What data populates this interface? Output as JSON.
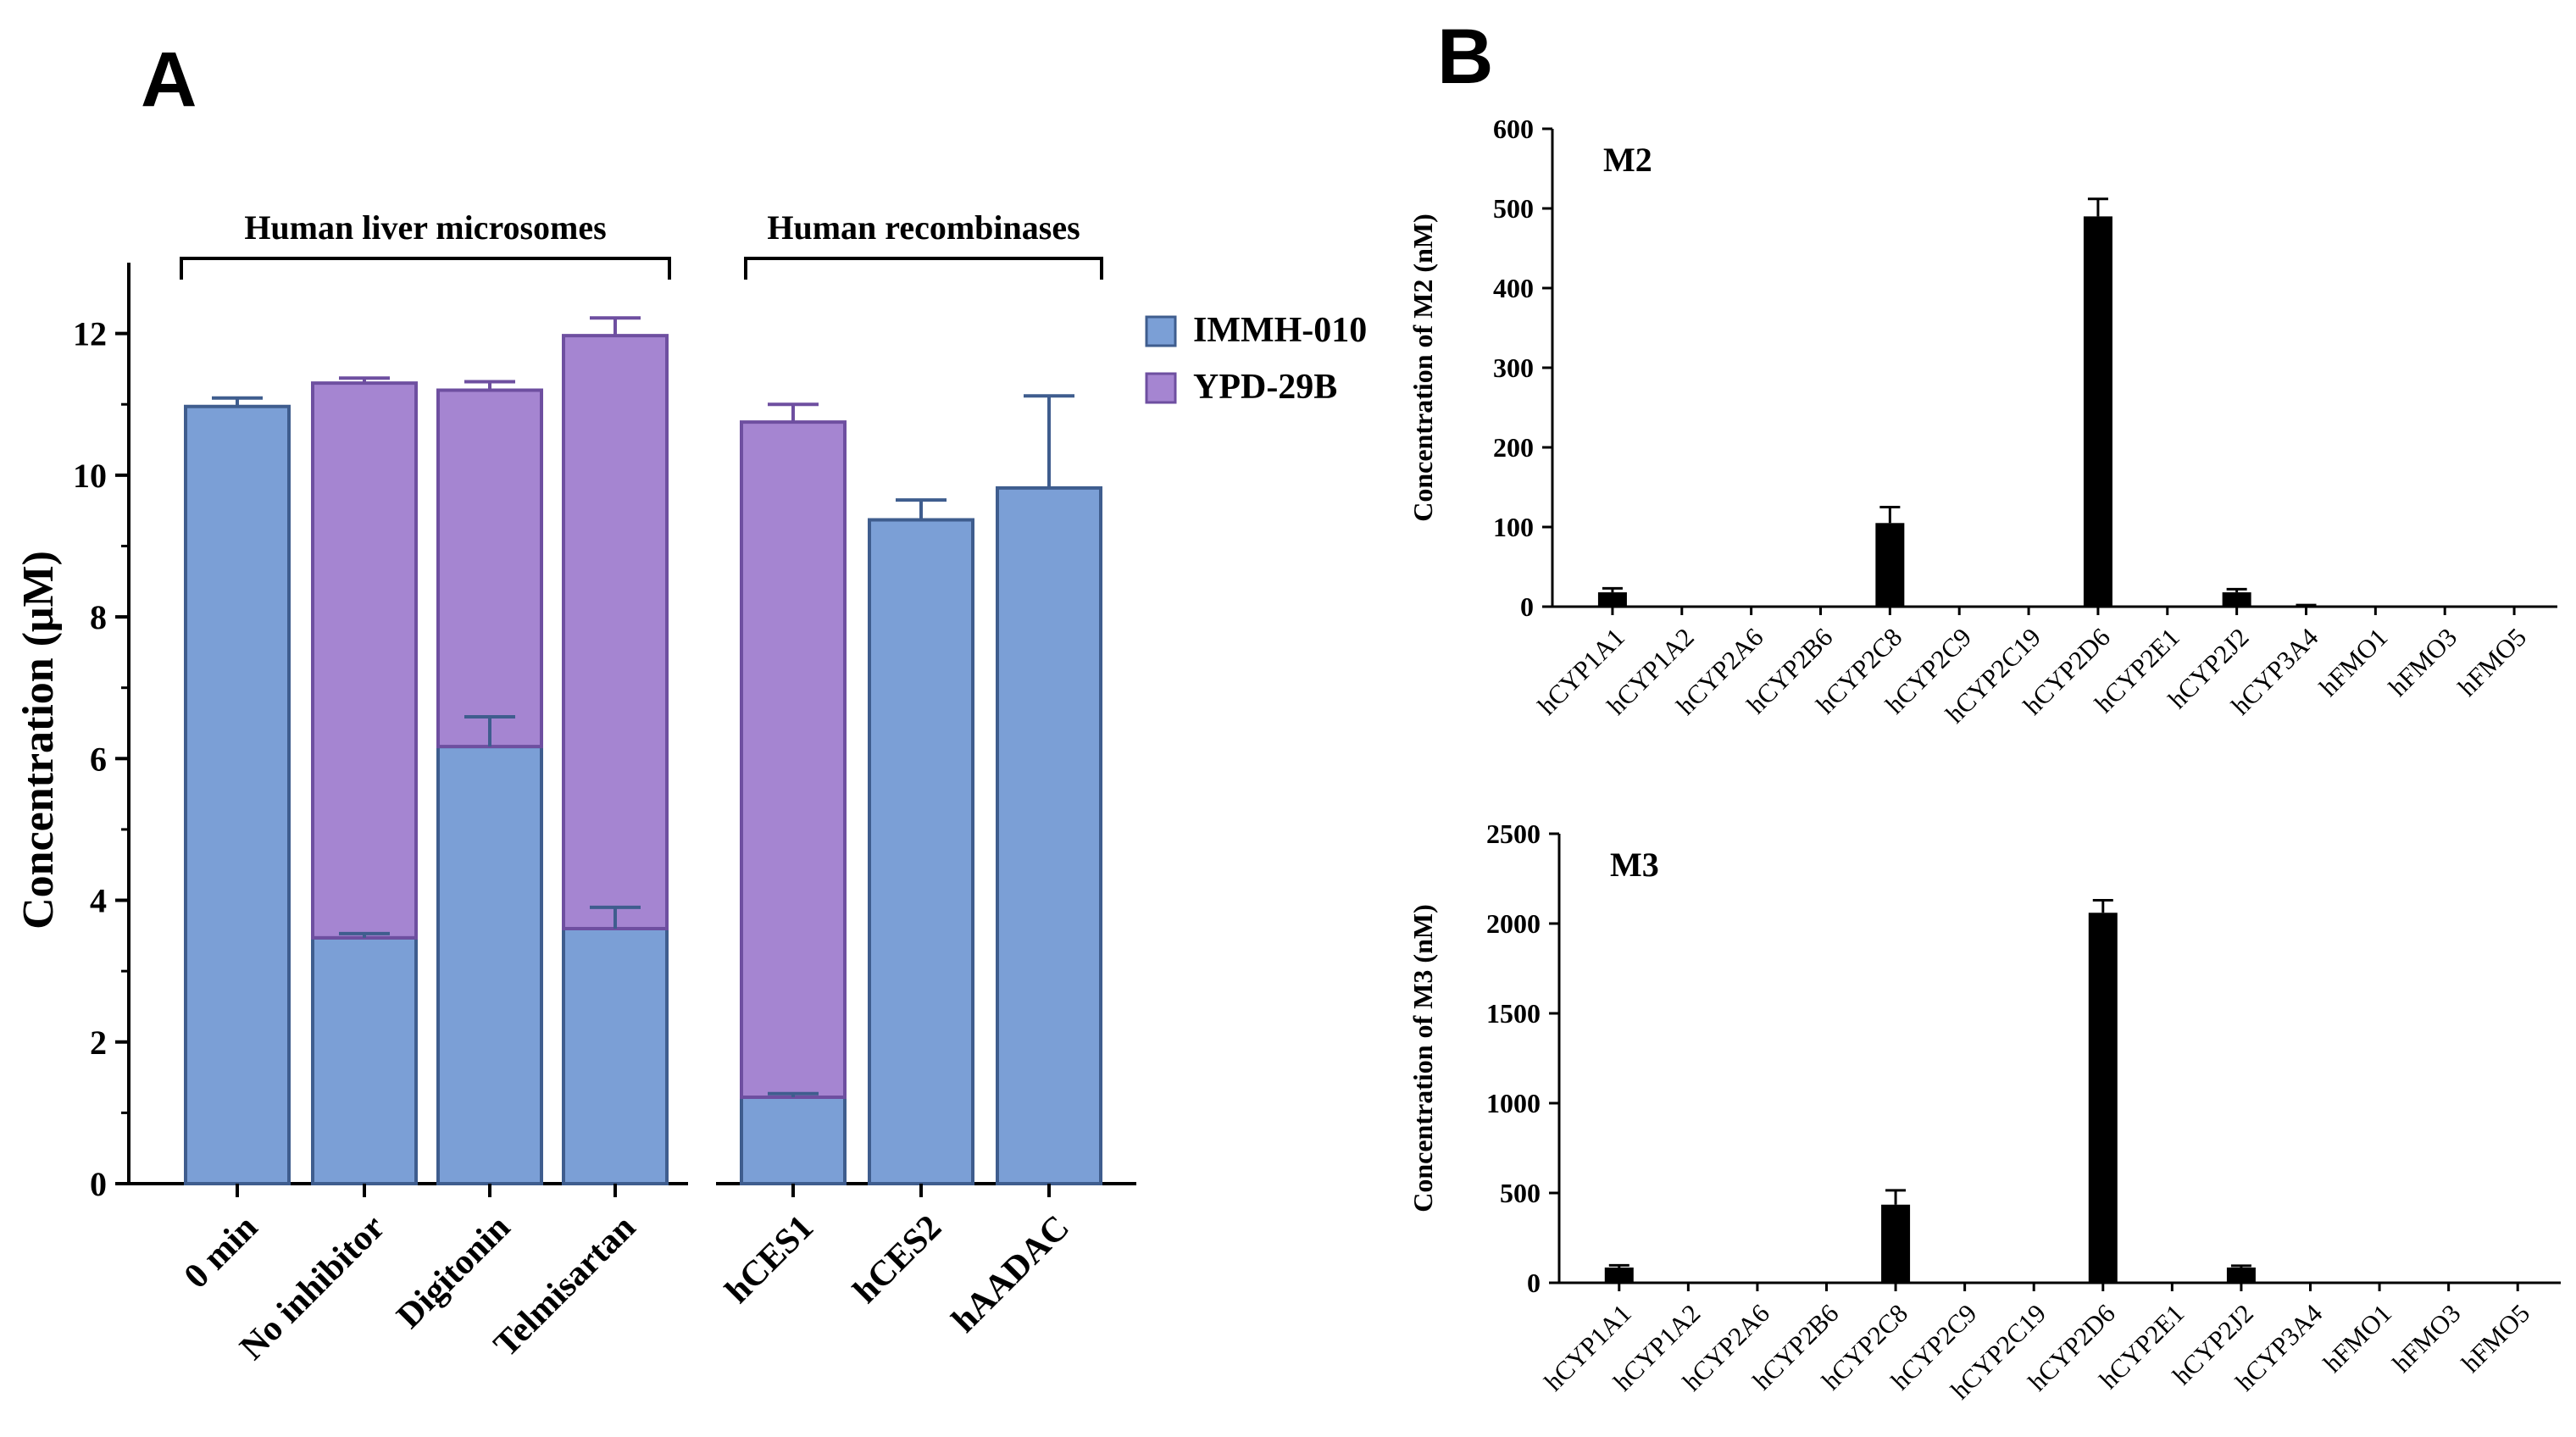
{
  "panel_a": {
    "label": "A",
    "group_left_label": "Human liver microsomes",
    "group_right_label": "Human recombinases"
  },
  "panel_b": {
    "label": "B"
  },
  "colors": {
    "immh": "#7b9fd6",
    "immh_edge": "#3f5d8e",
    "ypd": "#a585d1",
    "ypd_edge": "#6e4fa0",
    "black": "#000000"
  },
  "chart_data": [
    {
      "id": "A",
      "type": "bar",
      "stacked": true,
      "title": "",
      "xlabel": "",
      "ylabel": "Concentration (μM)",
      "ylim": [
        0,
        13
      ],
      "yticks": [
        0,
        2,
        4,
        6,
        8,
        10,
        12
      ],
      "categories": [
        "0 min",
        "No inhibitor",
        "Digitonin",
        "Telmisartan",
        "hCES1",
        "hCES2",
        "hAADAC"
      ],
      "series": [
        {
          "name": "IMMH-010",
          "values": [
            10.97,
            3.47,
            6.17,
            3.6,
            1.22,
            9.37,
            9.82
          ],
          "errors": [
            0.12,
            0.06,
            0.42,
            0.3,
            0.05,
            0.28,
            1.3
          ]
        },
        {
          "name": "YPD-29B",
          "values": [
            0,
            7.83,
            5.03,
            8.37,
            9.53,
            0,
            0
          ],
          "errors": [
            0,
            0.07,
            0.12,
            0.25,
            0.25,
            0,
            0
          ]
        }
      ],
      "legend": [
        "IMMH-010",
        "YPD-29B"
      ],
      "legend_position": "right",
      "grid": false
    },
    {
      "id": "M2",
      "type": "bar",
      "title": "M2",
      "xlabel": "",
      "ylabel": "Concentration of M2  (nM)",
      "ylim": [
        0,
        600
      ],
      "yticks": [
        0,
        100,
        200,
        300,
        400,
        500,
        600
      ],
      "categories": [
        "hCYP1A1",
        "hCYP1A2",
        "hCYP2A6",
        "hCYP2B6",
        "hCYP2C8",
        "hCYP2C9",
        "hCYP2C19",
        "hCYP2D6",
        "hCYP2E1",
        "hCYP2J2",
        "hCYP3A4",
        "hFMO1",
        "hFMO3",
        "hFMO5"
      ],
      "values": [
        18,
        0,
        0,
        0,
        105,
        0,
        0,
        490,
        0,
        18,
        1,
        0,
        0,
        0
      ],
      "errors": [
        5,
        0,
        0,
        0,
        20,
        0,
        0,
        22,
        0,
        4,
        1,
        0,
        0,
        0
      ],
      "grid": false
    },
    {
      "id": "M3",
      "type": "bar",
      "title": "M3",
      "xlabel": "",
      "ylabel": "Concentration of M3 (nM)",
      "ylim": [
        0,
        2500
      ],
      "yticks": [
        0,
        500,
        1000,
        1500,
        2000,
        2500
      ],
      "categories": [
        "hCYP1A1",
        "hCYP1A2",
        "hCYP2A6",
        "hCYP2B6",
        "hCYP2C8",
        "hCYP2C9",
        "hCYP2C19",
        "hCYP2D6",
        "hCYP2E1",
        "hCYP2J2",
        "hCYP3A4",
        "hFMO1",
        "hFMO3",
        "hFMO5"
      ],
      "values": [
        85,
        0,
        0,
        0,
        435,
        5,
        0,
        2060,
        0,
        85,
        5,
        0,
        0,
        0
      ],
      "errors": [
        12,
        0,
        0,
        0,
        80,
        0,
        0,
        70,
        0,
        10,
        0,
        0,
        0,
        0
      ],
      "grid": false
    }
  ]
}
